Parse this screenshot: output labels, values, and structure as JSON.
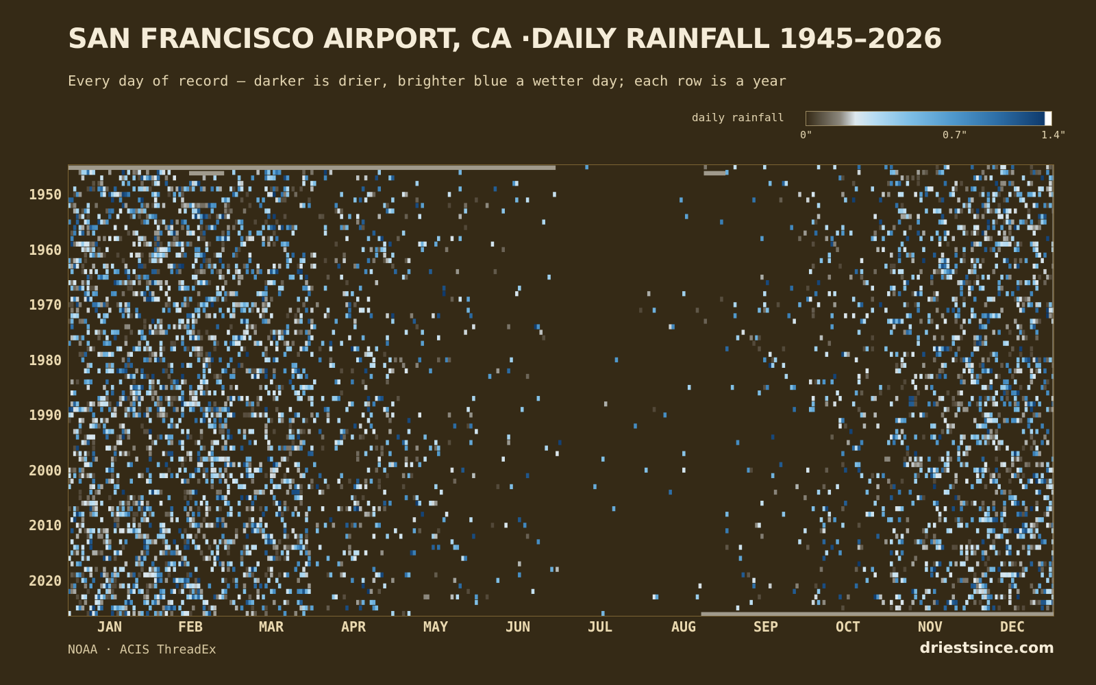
{
  "title": "SAN FRANCISCO AIRPORT, CA ·DAILY RAINFALL 1945–2026",
  "subtitle": "Every day of record — darker is drier, brighter blue a wetter day; each row is a year",
  "legend": {
    "label": "daily rainfall",
    "ticks": [
      "0\"",
      "0.7\"",
      "1.4\""
    ]
  },
  "source": "NOAA · ACIS ThreadEx",
  "brand": "driestsince.com",
  "colors": {
    "background": "#352a16",
    "dry": "#352a16",
    "trace": "#8e8a80",
    "light": "#b6dcf2",
    "mid": "#4f98cc",
    "wet": "#0f3a6c",
    "max": "#ffffff",
    "missing": "#a09a8c"
  },
  "chart_data": {
    "type": "heatmap",
    "title": "SAN FRANCISCO AIRPORT, CA ·DAILY RAINFALL 1945–2026",
    "x_axis": {
      "label": "",
      "ticks": [
        "JAN",
        "FEB",
        "MAR",
        "APR",
        "MAY",
        "JUN",
        "JUL",
        "AUG",
        "SEP",
        "OCT",
        "NOV",
        "DEC"
      ],
      "unit": "day of year",
      "range": [
        1,
        366
      ]
    },
    "y_axis": {
      "label": "",
      "ticks": [
        "1950",
        "1960",
        "1970",
        "1980",
        "1990",
        "2000",
        "2010",
        "2020"
      ],
      "range": [
        1945,
        2026
      ]
    },
    "color_scale": {
      "label": "daily rainfall",
      "unit": "inches",
      "range": [
        0,
        1.4
      ],
      "stops": [
        0,
        0.7,
        1.4
      ]
    },
    "years": [
      1945,
      2026
    ],
    "days_per_year": 366,
    "monthly_wet_day_probability": [
      0.27,
      0.25,
      0.22,
      0.12,
      0.05,
      0.02,
      0.005,
      0.008,
      0.03,
      0.08,
      0.18,
      0.24
    ],
    "missing_periods": [
      {
        "year": 1945,
        "from_day": 1,
        "to_day": 181
      },
      {
        "year": 1946,
        "from_day": 46,
        "to_day": 58
      },
      {
        "year": 1946,
        "from_day": 237,
        "to_day": 244
      },
      {
        "year": 2026,
        "from_day": 236,
        "to_day": 366
      }
    ],
    "grid": false,
    "legend_position": "top-right"
  }
}
